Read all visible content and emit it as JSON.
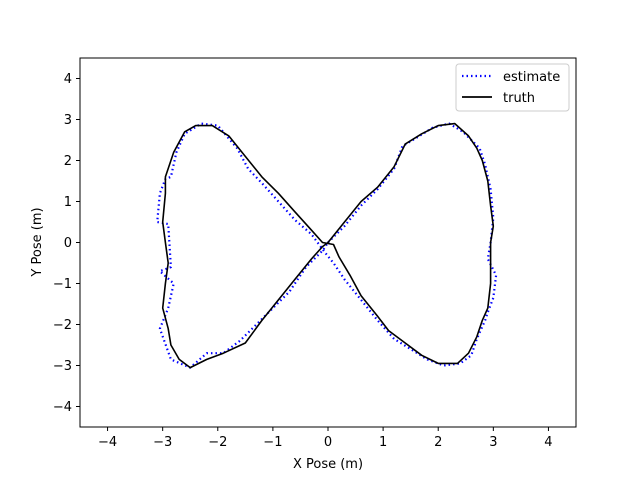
{
  "chart_data": {
    "type": "line",
    "xlabel": "X Pose (m)",
    "ylabel": "Y Pose (m)",
    "xlim": [
      -4.5,
      4.5
    ],
    "ylim": [
      -4.5,
      4.5
    ],
    "xticks": [
      -4,
      -3,
      -2,
      -1,
      0,
      1,
      2,
      3,
      4
    ],
    "yticks": [
      -4,
      -3,
      -2,
      -1,
      0,
      1,
      2,
      3,
      4
    ],
    "xtick_labels": [
      "−4",
      "−3",
      "−2",
      "−1",
      "0",
      "1",
      "2",
      "3",
      "4"
    ],
    "ytick_labels": [
      "−4",
      "−3",
      "−2",
      "−1",
      "0",
      "1",
      "2",
      "3",
      "4"
    ],
    "grid": false,
    "legend_position": "top-right",
    "series": [
      {
        "name": "estimate",
        "style": "dotted",
        "color": "#0000ff",
        "x": [
          0.0,
          0.3,
          0.6,
          0.9,
          1.2,
          1.35,
          1.6,
          1.9,
          2.2,
          2.45,
          2.6,
          2.75,
          2.85,
          2.95,
          3.0,
          2.95,
          2.9,
          3.05,
          3.0,
          2.9,
          2.85,
          2.7,
          2.6,
          2.4,
          2.1,
          1.8,
          1.5,
          1.2,
          0.9,
          0.6,
          0.3,
          0.1,
          -0.05,
          -0.3,
          -0.6,
          -0.9,
          -1.2,
          -1.45,
          -1.65,
          -2.0,
          -2.3,
          -2.6,
          -2.75,
          -2.85,
          -2.95,
          -3.05,
          -3.1,
          -2.9,
          -2.85,
          -3.05,
          -2.8,
          -2.9,
          -3.05,
          -2.85,
          -2.5,
          -2.2,
          -1.9,
          -1.6,
          -1.3,
          -1.0,
          -0.7,
          -0.4,
          -0.1,
          0.0
        ],
        "y": [
          0.0,
          0.4,
          0.9,
          1.3,
          1.8,
          2.35,
          2.55,
          2.8,
          2.9,
          2.7,
          2.5,
          2.3,
          1.9,
          1.3,
          0.6,
          0.0,
          -0.4,
          -0.8,
          -1.35,
          -1.7,
          -1.9,
          -2.35,
          -2.75,
          -2.95,
          -3.0,
          -2.85,
          -2.6,
          -2.35,
          -1.9,
          -1.4,
          -0.9,
          -0.5,
          -0.25,
          0.2,
          0.55,
          1.0,
          1.45,
          1.8,
          2.3,
          2.85,
          2.9,
          2.65,
          2.2,
          1.6,
          1.55,
          1.2,
          0.5,
          0.45,
          -0.6,
          -0.7,
          -1.0,
          -1.6,
          -2.1,
          -2.85,
          -3.05,
          -2.7,
          -2.7,
          -2.4,
          -2.0,
          -1.6,
          -1.2,
          -0.6,
          -0.2,
          0.0
        ]
      },
      {
        "name": "truth",
        "style": "solid",
        "color": "#000000",
        "x": [
          0.0,
          0.3,
          0.6,
          0.9,
          1.2,
          1.4,
          1.7,
          2.0,
          2.3,
          2.55,
          2.7,
          2.8,
          2.9,
          2.95,
          3.0,
          2.95,
          2.95,
          2.95,
          2.9,
          2.8,
          2.7,
          2.55,
          2.35,
          2.0,
          1.7,
          1.4,
          1.1,
          0.9,
          0.6,
          0.4,
          0.2,
          0.1,
          -0.1,
          -0.3,
          -0.6,
          -0.9,
          -1.2,
          -1.5,
          -1.8,
          -2.1,
          -2.4,
          -2.6,
          -2.8,
          -2.95,
          -2.95,
          -3.0,
          -2.95,
          -2.9,
          -2.95,
          -3.0,
          -2.9,
          -2.85,
          -2.7,
          -2.5,
          -2.2,
          -1.9,
          -1.5,
          -1.2,
          -0.9,
          -0.6,
          -0.3,
          -0.1,
          0.0
        ],
        "y": [
          0.0,
          0.5,
          1.0,
          1.35,
          1.85,
          2.4,
          2.65,
          2.85,
          2.9,
          2.6,
          2.3,
          2.0,
          1.5,
          0.9,
          0.4,
          0.0,
          -0.5,
          -1.0,
          -1.6,
          -1.9,
          -2.3,
          -2.7,
          -2.95,
          -2.95,
          -2.75,
          -2.45,
          -2.15,
          -1.8,
          -1.3,
          -0.8,
          -0.35,
          -0.05,
          0.0,
          0.3,
          0.75,
          1.2,
          1.6,
          2.1,
          2.6,
          2.85,
          2.85,
          2.7,
          2.2,
          1.6,
          1.2,
          0.5,
          0.0,
          -0.5,
          -1.0,
          -1.6,
          -2.1,
          -2.5,
          -2.85,
          -3.05,
          -2.85,
          -2.7,
          -2.45,
          -1.9,
          -1.4,
          -0.9,
          -0.4,
          -0.1,
          0.0
        ]
      }
    ]
  }
}
